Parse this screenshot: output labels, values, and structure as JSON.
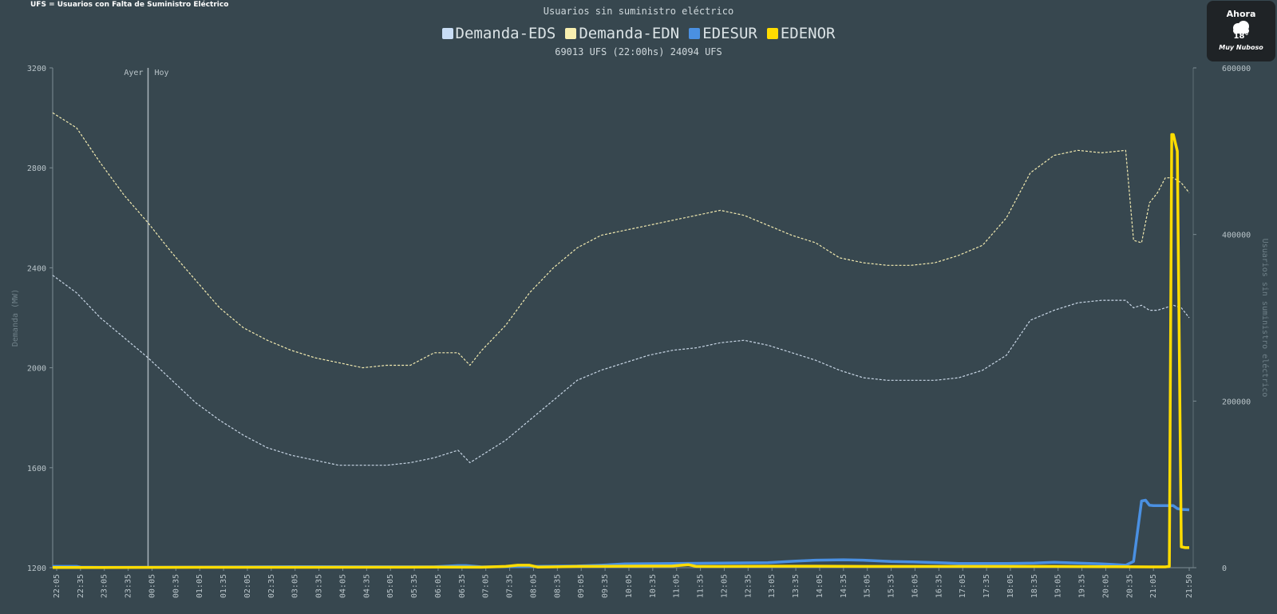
{
  "header_note": "UFS = Usuarios con Falta de Suministro Eléctrico",
  "weather": {
    "title": "Ahora",
    "temp": "18°",
    "desc": "Muy Nuboso",
    "icon": "cloud-icon"
  },
  "chart_data": {
    "type": "line",
    "title": "Usuarios sin suministro eléctrico",
    "subtitle": "69013 UFS (22:00hs) 24094 UFS",
    "ylabel_left": "Demanda (MW)",
    "ylabel_right": "Usuarios sin suministro eléctrico",
    "ylim_left": [
      1200,
      3200
    ],
    "ylim_right": [
      0,
      600000
    ],
    "yticks_left": [
      "1200",
      "1600",
      "2000",
      "2400",
      "2800",
      "3200"
    ],
    "yticks_right": [
      "0",
      "200000",
      "400000",
      "600000"
    ],
    "x_ticks": [
      "22:05",
      "22:35",
      "23:05",
      "23:35",
      "00:05",
      "00:35",
      "01:05",
      "01:35",
      "02:05",
      "02:35",
      "03:05",
      "03:35",
      "04:05",
      "04:35",
      "05:05",
      "05:35",
      "06:05",
      "06:35",
      "07:05",
      "07:35",
      "08:05",
      "08:35",
      "09:05",
      "09:35",
      "10:05",
      "10:35",
      "11:05",
      "11:35",
      "12:05",
      "12:35",
      "13:05",
      "13:35",
      "14:05",
      "14:35",
      "15:05",
      "15:35",
      "16:05",
      "16:35",
      "17:05",
      "17:35",
      "18:05",
      "18:35",
      "19:05",
      "19:35",
      "20:05",
      "20:35",
      "21:05",
      "21:50"
    ],
    "divider": {
      "left_label": "Ayer",
      "right_label": "Hoy",
      "x": "00:00"
    },
    "legend": [
      {
        "name": "Demanda-EDS",
        "color": "#c8ddf5"
      },
      {
        "name": "Demanda-EDN",
        "color": "#f8efb0"
      },
      {
        "name": "EDESUR",
        "color": "#4a90e2"
      },
      {
        "name": "EDENOR",
        "color": "#ffdc00"
      }
    ],
    "series": [
      {
        "name": "Demanda-EDN",
        "axis": "left",
        "style": "dashed",
        "color": "#f2eab0",
        "x": [
          "22:00",
          "22:30",
          "23:00",
          "23:30",
          "00:00",
          "00:30",
          "01:00",
          "01:30",
          "02:00",
          "02:30",
          "03:00",
          "03:30",
          "04:00",
          "04:30",
          "05:00",
          "05:30",
          "06:00",
          "06:30",
          "06:45",
          "07:00",
          "07:30",
          "08:00",
          "08:30",
          "09:00",
          "09:30",
          "10:00",
          "10:30",
          "11:00",
          "11:30",
          "12:00",
          "12:30",
          "13:00",
          "13:30",
          "14:00",
          "14:30",
          "15:00",
          "15:30",
          "16:00",
          "16:30",
          "17:00",
          "17:30",
          "18:00",
          "18:30",
          "19:00",
          "19:30",
          "20:00",
          "20:30",
          "20:40",
          "20:50",
          "21:00",
          "21:10",
          "21:20",
          "21:30",
          "21:40",
          "21:50"
        ],
        "values": [
          3020,
          2960,
          2820,
          2690,
          2580,
          2460,
          2350,
          2240,
          2160,
          2110,
          2070,
          2040,
          2020,
          2000,
          2010,
          2010,
          2060,
          2060,
          2010,
          2070,
          2170,
          2300,
          2400,
          2480,
          2530,
          2550,
          2570,
          2590,
          2610,
          2630,
          2610,
          2570,
          2530,
          2500,
          2440,
          2420,
          2410,
          2410,
          2420,
          2450,
          2490,
          2600,
          2780,
          2850,
          2870,
          2860,
          2870,
          2510,
          2500,
          2660,
          2700,
          2760,
          2760,
          2740,
          2700
        ]
      },
      {
        "name": "Demanda-EDS",
        "axis": "left",
        "style": "dashed",
        "color": "#c8d6e5",
        "x": [
          "22:00",
          "22:30",
          "23:00",
          "23:30",
          "00:00",
          "00:30",
          "01:00",
          "01:30",
          "02:00",
          "02:30",
          "03:00",
          "03:30",
          "04:00",
          "04:30",
          "05:00",
          "05:30",
          "06:00",
          "06:30",
          "06:45",
          "07:00",
          "07:30",
          "08:00",
          "08:30",
          "09:00",
          "09:30",
          "10:00",
          "10:30",
          "11:00",
          "11:30",
          "12:00",
          "12:30",
          "13:00",
          "13:30",
          "14:00",
          "14:30",
          "15:00",
          "15:30",
          "16:00",
          "16:30",
          "17:00",
          "17:30",
          "18:00",
          "18:30",
          "19:00",
          "19:30",
          "20:00",
          "20:30",
          "20:40",
          "20:50",
          "21:00",
          "21:10",
          "21:20",
          "21:30",
          "21:40",
          "21:50"
        ],
        "values": [
          2370,
          2300,
          2200,
          2120,
          2040,
          1950,
          1860,
          1790,
          1730,
          1680,
          1650,
          1630,
          1610,
          1610,
          1610,
          1620,
          1640,
          1670,
          1620,
          1650,
          1710,
          1790,
          1870,
          1950,
          1990,
          2020,
          2050,
          2070,
          2080,
          2100,
          2110,
          2090,
          2060,
          2030,
          1990,
          1960,
          1950,
          1950,
          1950,
          1960,
          1990,
          2050,
          2190,
          2230,
          2260,
          2270,
          2270,
          2240,
          2250,
          2230,
          2230,
          2240,
          2250,
          2240,
          2200
        ]
      },
      {
        "name": "EDESUR",
        "axis": "right",
        "style": "solid",
        "color": "#4a90e2",
        "x": [
          "22:00",
          "22:30",
          "22:35",
          "23:00",
          "23:30",
          "00:00",
          "03:00",
          "05:30",
          "06:00",
          "06:30",
          "06:40",
          "07:00",
          "09:00",
          "09:30",
          "10:00",
          "11:00",
          "13:00",
          "13:35",
          "14:00",
          "14:35",
          "15:00",
          "15:35",
          "16:00",
          "16:35",
          "17:00",
          "18:00",
          "18:35",
          "19:00",
          "19:30",
          "20:00",
          "20:20",
          "20:30",
          "20:40",
          "20:50",
          "20:55",
          "21:00",
          "21:05",
          "21:10",
          "21:20",
          "21:30",
          "21:35",
          "21:40",
          "21:50"
        ],
        "values": [
          1500,
          1500,
          800,
          500,
          500,
          500,
          1200,
          1100,
          1100,
          2500,
          2500,
          1000,
          2000,
          3000,
          4500,
          5000,
          6000,
          8000,
          9000,
          9500,
          9000,
          7500,
          7000,
          6000,
          5000,
          5000,
          5500,
          6500,
          5500,
          4500,
          3500,
          3000,
          7500,
          80000,
          81000,
          75000,
          74500,
          74500,
          74500,
          74500,
          71000,
          70000,
          69500
        ]
      },
      {
        "name": "EDENOR",
        "axis": "right",
        "style": "solid",
        "color": "#ffdc00",
        "x": [
          "22:00",
          "23:00",
          "00:00",
          "03:00",
          "06:00",
          "07:00",
          "07:30",
          "07:45",
          "08:00",
          "08:10",
          "08:30",
          "09:00",
          "10:00",
          "11:00",
          "11:20",
          "11:30",
          "12:00",
          "13:00",
          "14:00",
          "15:00",
          "16:00",
          "17:00",
          "18:00",
          "19:00",
          "20:00",
          "21:00",
          "21:20",
          "21:25",
          "21:28",
          "21:30",
          "21:35",
          "21:40",
          "21:45",
          "21:50"
        ],
        "values": [
          200,
          300,
          400,
          500,
          700,
          600,
          1500,
          3000,
          3000,
          800,
          1000,
          1500,
          1800,
          2000,
          3500,
          1500,
          1500,
          1800,
          1800,
          1500,
          1500,
          1500,
          1500,
          1500,
          1200,
          1000,
          1000,
          1500,
          520000,
          520000,
          500000,
          25000,
          24094,
          24094
        ]
      }
    ]
  }
}
